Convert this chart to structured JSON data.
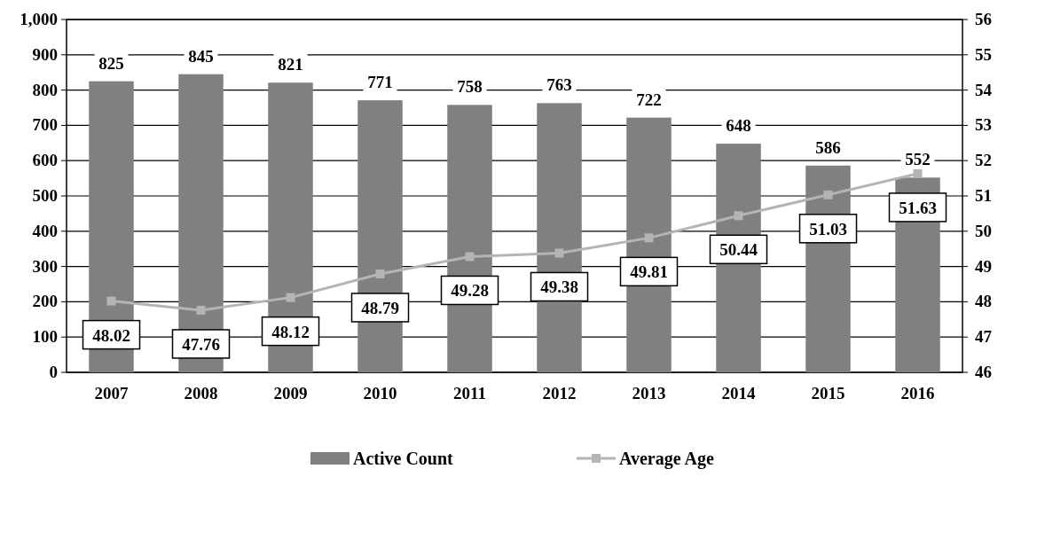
{
  "chart_data": {
    "type": "bar",
    "categories": [
      "2007",
      "2008",
      "2009",
      "2010",
      "2011",
      "2012",
      "2013",
      "2014",
      "2015",
      "2016"
    ],
    "series": [
      {
        "name": "Active Count",
        "color": "#808080",
        "values": [
          825,
          845,
          821,
          771,
          758,
          763,
          722,
          648,
          586,
          552
        ]
      },
      {
        "name": "Average Age",
        "type": "line",
        "axis": "y2",
        "color": "#b4b4b4",
        "marker": "square",
        "values": [
          48.02,
          47.76,
          48.12,
          48.79,
          49.28,
          49.38,
          49.81,
          50.44,
          51.03,
          51.63
        ]
      }
    ],
    "ylim": [
      0,
      1000
    ],
    "yticks": [
      0,
      100,
      200,
      300,
      400,
      500,
      600,
      700,
      800,
      900,
      {
        "value": 1000,
        "label": "1,000"
      }
    ],
    "y2lim": [
      46,
      56
    ],
    "y2ticks": [
      46,
      47,
      48,
      49,
      50,
      51,
      52,
      53,
      54,
      55,
      56
    ],
    "grid": "y",
    "legend": "bottom",
    "data_labels": true
  }
}
